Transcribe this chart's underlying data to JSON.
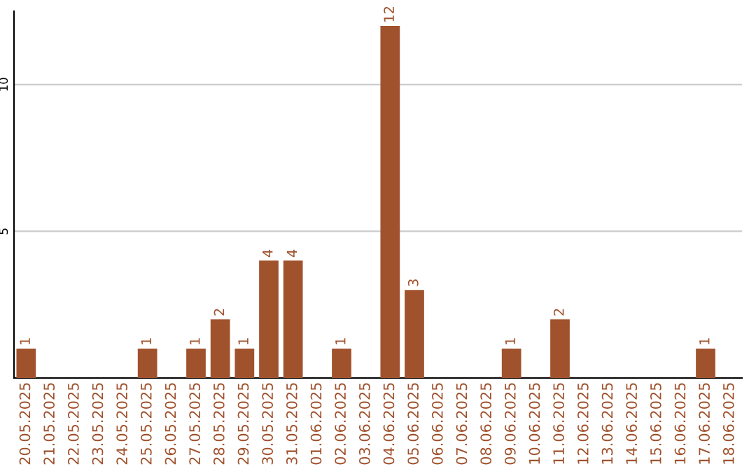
{
  "chart_data": {
    "type": "bar",
    "categories": [
      "20.05.2025",
      "21.05.2025",
      "22.05.2025",
      "23.05.2025",
      "24.05.2025",
      "25.05.2025",
      "26.05.2025",
      "27.05.2025",
      "28.05.2025",
      "29.05.2025",
      "30.05.2025",
      "31.05.2025",
      "01.06.2025",
      "02.06.2025",
      "03.06.2025",
      "04.06.2025",
      "05.06.2025",
      "06.06.2025",
      "07.06.2025",
      "08.06.2025",
      "09.06.2025",
      "10.06.2025",
      "11.06.2025",
      "12.06.2025",
      "13.06.2025",
      "14.06.2025",
      "15.06.2025",
      "16.06.2025",
      "17.06.2025",
      "18.06.2025"
    ],
    "values": [
      1,
      0,
      0,
      0,
      0,
      1,
      0,
      1,
      2,
      1,
      4,
      4,
      0,
      1,
      0,
      12,
      3,
      0,
      0,
      0,
      1,
      0,
      2,
      0,
      0,
      0,
      0,
      0,
      1,
      0
    ],
    "value_labels": [
      "1",
      null,
      null,
      null,
      null,
      "1",
      null,
      "1",
      "2",
      "1",
      "4",
      "4",
      null,
      "1",
      null,
      "12",
      "3",
      null,
      null,
      null,
      "1",
      null,
      "2",
      null,
      null,
      null,
      null,
      null,
      "1",
      null
    ],
    "color": "#a0522d",
    "ylim": [
      0,
      12.5
    ],
    "yticks": [
      5,
      10
    ],
    "grid": "y"
  }
}
